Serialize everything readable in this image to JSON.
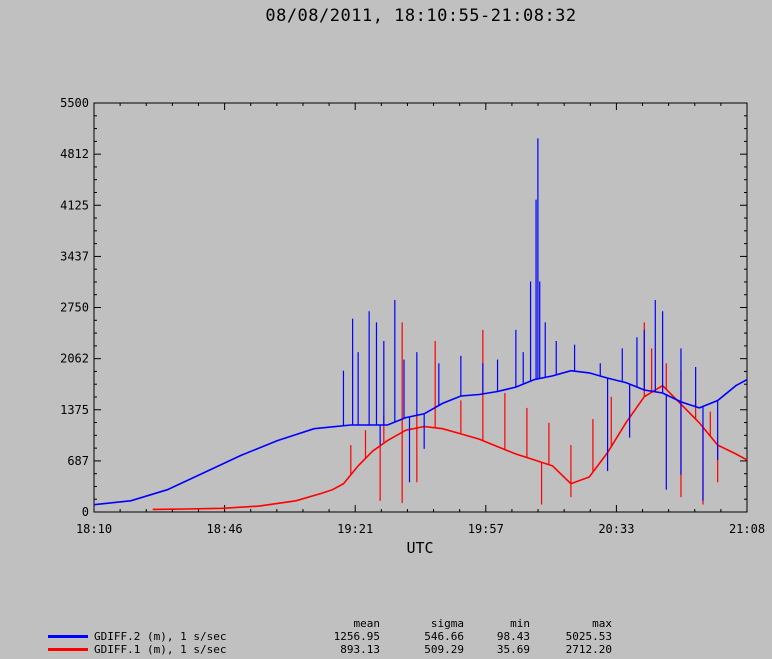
{
  "title": "08/08/2011, 18:10:55-21:08:32",
  "chart_data": {
    "type": "line",
    "xlabel": "UTC",
    "ylabel": "",
    "x_range": [
      "18:10",
      "21:08"
    ],
    "ylim": [
      0,
      5500
    ],
    "x_ticks": [
      "18:10",
      "18:46",
      "19:21",
      "19:57",
      "20:33",
      "21:08"
    ],
    "y_ticks": [
      "0",
      "687",
      "1375",
      "2062",
      "2750",
      "3437",
      "4125",
      "4812",
      "5500"
    ],
    "y_tick_values": [
      0,
      687,
      1375,
      2062,
      2750,
      3437,
      4125,
      4812,
      5500
    ],
    "grid": false,
    "legend_position": "bottom-left",
    "series": [
      {
        "name": "GDIFF.2 (m), 1 s/sec",
        "color": "#0000ff",
        "stats": {
          "mean": "1256.95",
          "sigma": "546.66",
          "min": "98.43",
          "max": "5025.53"
        },
        "x_minutes": [
          0,
          10,
          20,
          30,
          40,
          50,
          60,
          70,
          80,
          85,
          90,
          95,
          100,
          105,
          110,
          115,
          120,
          125,
          130,
          135,
          140,
          145,
          150,
          155,
          160,
          165,
          170,
          175,
          178
        ],
        "values": [
          98,
          150,
          300,
          530,
          760,
          960,
          1120,
          1170,
          1170,
          1270,
          1320,
          1460,
          1560,
          1580,
          1620,
          1680,
          1780,
          1830,
          1900,
          1870,
          1800,
          1740,
          1640,
          1600,
          1480,
          1400,
          1500,
          1700,
          1780
        ],
        "spikes": [
          {
            "x": 68.0,
            "y": 1900
          },
          {
            "x": 70.5,
            "y": 2600
          },
          {
            "x": 72.0,
            "y": 2150
          },
          {
            "x": 75.0,
            "y": 2700
          },
          {
            "x": 77.0,
            "y": 2550
          },
          {
            "x": 79.0,
            "y": 2300
          },
          {
            "x": 82.0,
            "y": 2850
          },
          {
            "x": 84.5,
            "y": 2050
          },
          {
            "x": 88.0,
            "y": 2150
          },
          {
            "x": 94.0,
            "y": 2000
          },
          {
            "x": 100.0,
            "y": 2100
          },
          {
            "x": 106.0,
            "y": 2000
          },
          {
            "x": 110.0,
            "y": 2050
          },
          {
            "x": 115.0,
            "y": 2450
          },
          {
            "x": 117.0,
            "y": 2150
          },
          {
            "x": 119.0,
            "y": 3100
          },
          {
            "x": 120.5,
            "y": 4200
          },
          {
            "x": 121.0,
            "y": 5025
          },
          {
            "x": 121.5,
            "y": 3100
          },
          {
            "x": 123.0,
            "y": 2550
          },
          {
            "x": 126.0,
            "y": 2300
          },
          {
            "x": 131.0,
            "y": 2250
          },
          {
            "x": 138.0,
            "y": 2000
          },
          {
            "x": 144.0,
            "y": 2200
          },
          {
            "x": 148.0,
            "y": 2350
          },
          {
            "x": 150.0,
            "y": 2450
          },
          {
            "x": 153.0,
            "y": 2850
          },
          {
            "x": 155.0,
            "y": 2700
          },
          {
            "x": 160.0,
            "y": 2200
          },
          {
            "x": 164.0,
            "y": 1950
          }
        ],
        "dips": [
          {
            "x": 78.0,
            "y": 900
          },
          {
            "x": 86.0,
            "y": 400
          },
          {
            "x": 90.0,
            "y": 850
          },
          {
            "x": 140.0,
            "y": 550
          },
          {
            "x": 146.0,
            "y": 1000
          },
          {
            "x": 156.0,
            "y": 300
          },
          {
            "x": 160.0,
            "y": 500
          },
          {
            "x": 166.0,
            "y": 150
          },
          {
            "x": 170.0,
            "y": 700
          }
        ]
      },
      {
        "name": "GDIFF.1 (m), 1 s/sec",
        "color": "#ff0000",
        "stats": {
          "mean": "893.13",
          "sigma": "509.29",
          "min": "35.69",
          "max": "2712.20"
        },
        "x_minutes": [
          16,
          25,
          35,
          45,
          55,
          62,
          65,
          68,
          72,
          76,
          80,
          85,
          90,
          95,
          100,
          105,
          110,
          115,
          120,
          125,
          130,
          135,
          140,
          145,
          150,
          155,
          160,
          165,
          170,
          175,
          178
        ],
        "values": [
          35,
          40,
          50,
          80,
          150,
          250,
          300,
          380,
          620,
          820,
          960,
          1100,
          1150,
          1120,
          1050,
          980,
          880,
          780,
          700,
          620,
          380,
          470,
          800,
          1200,
          1550,
          1700,
          1450,
          1200,
          900,
          780,
          700
        ],
        "spikes": [
          {
            "x": 70.0,
            "y": 900
          },
          {
            "x": 74.0,
            "y": 1100
          },
          {
            "x": 79.0,
            "y": 1300
          },
          {
            "x": 84.0,
            "y": 2550
          },
          {
            "x": 88.0,
            "y": 1300
          },
          {
            "x": 93.0,
            "y": 2300
          },
          {
            "x": 100.0,
            "y": 1500
          },
          {
            "x": 106.0,
            "y": 2450
          },
          {
            "x": 112.0,
            "y": 1600
          },
          {
            "x": 118.0,
            "y": 1400
          },
          {
            "x": 124.0,
            "y": 1200
          },
          {
            "x": 130.0,
            "y": 900
          },
          {
            "x": 136.0,
            "y": 1250
          },
          {
            "x": 141.0,
            "y": 1550
          },
          {
            "x": 146.0,
            "y": 1700
          },
          {
            "x": 150.0,
            "y": 2550
          },
          {
            "x": 152.0,
            "y": 2200
          },
          {
            "x": 156.0,
            "y": 2000
          },
          {
            "x": 160.0,
            "y": 1900
          },
          {
            "x": 164.0,
            "y": 1500
          },
          {
            "x": 168.0,
            "y": 1350
          }
        ],
        "dips": [
          {
            "x": 78.0,
            "y": 150
          },
          {
            "x": 84.0,
            "y": 120
          },
          {
            "x": 88.0,
            "y": 400
          },
          {
            "x": 122.0,
            "y": 100
          },
          {
            "x": 130.0,
            "y": 200
          },
          {
            "x": 160.0,
            "y": 200
          },
          {
            "x": 166.0,
            "y": 100
          },
          {
            "x": 170.0,
            "y": 400
          }
        ]
      }
    ]
  },
  "legend": {
    "headers": {
      "mean": "mean",
      "sigma": "sigma",
      "min": "min",
      "max": "max"
    }
  }
}
